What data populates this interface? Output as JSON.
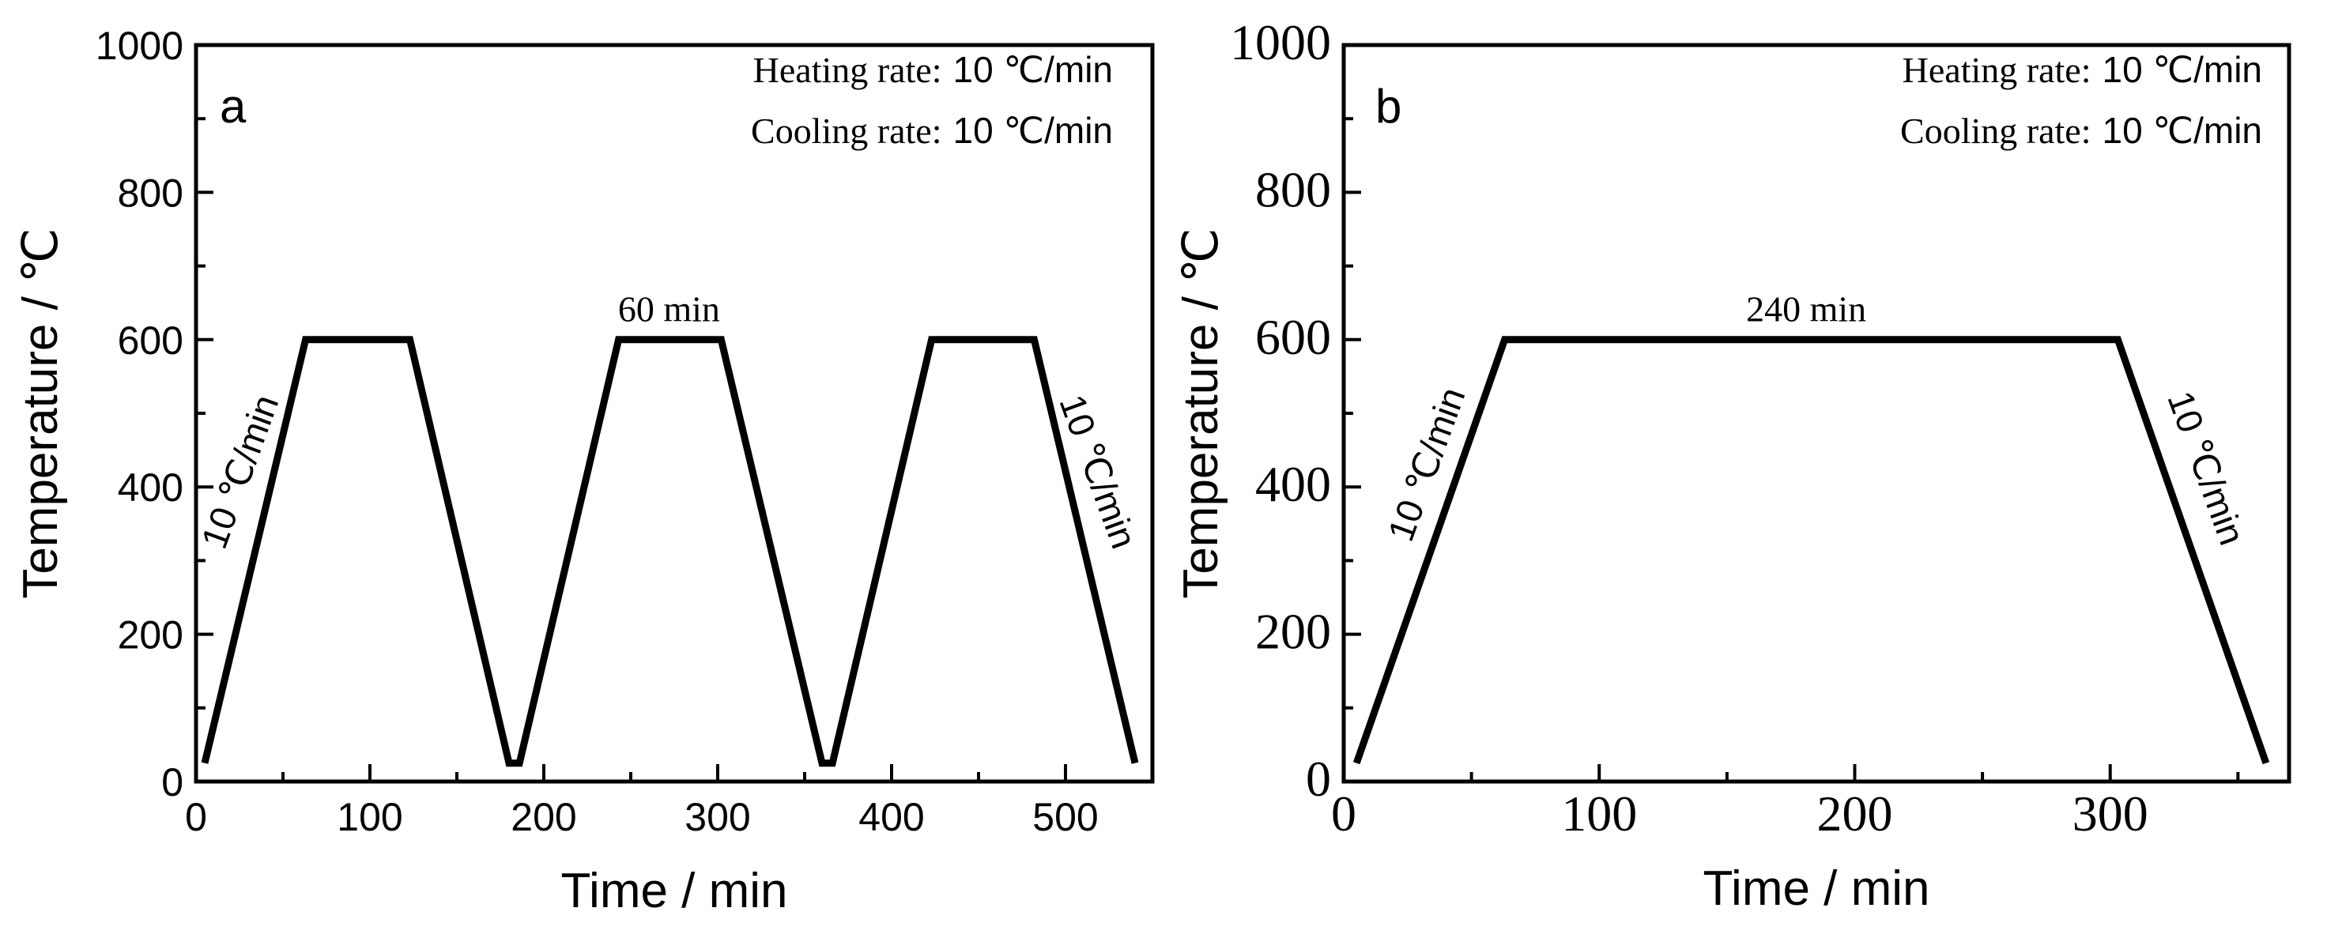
{
  "chart_data": [
    {
      "panel_label": "a",
      "type": "line",
      "xlabel": "Time / min",
      "ylabel": "Temperature / ℃",
      "xlim": [
        0,
        550
      ],
      "ylim": [
        0,
        1000
      ],
      "xticks": [
        0,
        100,
        200,
        300,
        400,
        500
      ],
      "yticks": [
        0,
        200,
        400,
        600,
        800,
        1000
      ],
      "series": [
        {
          "name": "temperature",
          "x": [
            5,
            63,
            123,
            180,
            186,
            243,
            302,
            360,
            366,
            423,
            482,
            540
          ],
          "y": [
            25,
            600,
            600,
            25,
            25,
            600,
            600,
            25,
            25,
            600,
            600,
            25
          ]
        }
      ],
      "legend": [
        {
          "label": "Heating rate:",
          "value": "10 ℃/min"
        },
        {
          "label": "Cooling rate:",
          "value": "10 ℃/min"
        }
      ],
      "annotations": [
        {
          "text": "10 ℃/min",
          "x": 32,
          "y": 415,
          "angle": -70
        },
        {
          "text": "60 min",
          "x": 272,
          "y": 625,
          "angle": 0
        },
        {
          "text": "10 ℃/min",
          "x": 512,
          "y": 415,
          "angle": 70
        }
      ]
    },
    {
      "panel_label": "b",
      "type": "line",
      "xlabel": "Time / min",
      "ylabel": "Temperature / ℃",
      "xlim": [
        0,
        370
      ],
      "ylim": [
        0,
        1000
      ],
      "xticks": [
        0,
        100,
        200,
        300
      ],
      "yticks": [
        0,
        200,
        400,
        600,
        800,
        1000
      ],
      "series": [
        {
          "name": "temperature",
          "x": [
            5,
            63,
            303,
            361
          ],
          "y": [
            25,
            600,
            600,
            25
          ]
        }
      ],
      "legend": [
        {
          "label": "Heating rate:",
          "value": "10 ℃/min"
        },
        {
          "label": "Cooling rate:",
          "value": "10 ℃/min"
        }
      ],
      "annotations": [
        {
          "text": "10 ℃/min",
          "x": 37,
          "y": 425,
          "angle": -70
        },
        {
          "text": "240 min",
          "x": 181,
          "y": 625,
          "angle": 0
        },
        {
          "text": "10 ℃/min",
          "x": 333,
          "y": 420,
          "angle": 70
        }
      ]
    }
  ]
}
